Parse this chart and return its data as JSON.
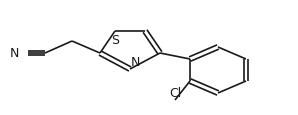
{
  "bg_color": "#ffffff",
  "line_color": "#1a1a1a",
  "figsize": [
    2.98,
    1.16
  ],
  "dpi": 100,
  "xlim": [
    0,
    298
  ],
  "ylim": [
    0,
    116
  ]
}
